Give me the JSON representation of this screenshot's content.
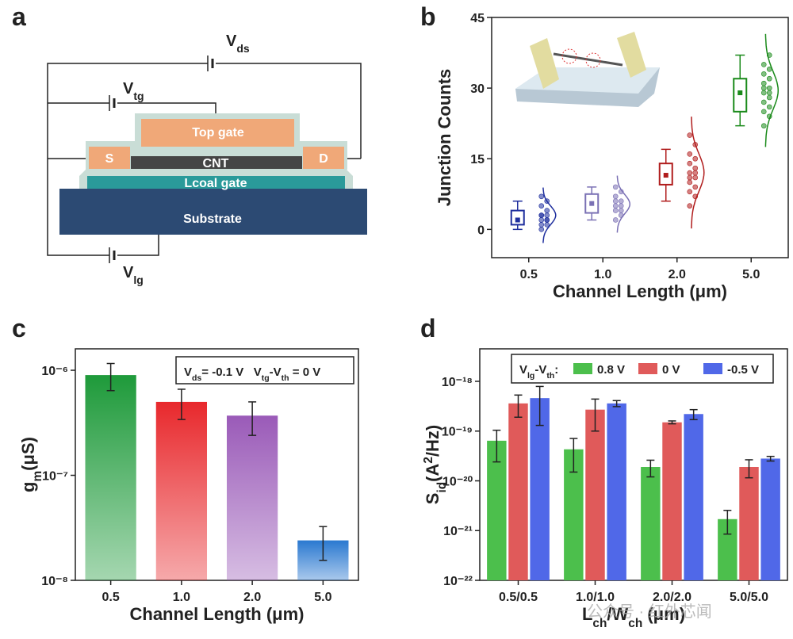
{
  "panel_labels": [
    "a",
    "b",
    "c",
    "d"
  ],
  "diagram": {
    "voltages": [
      [
        {
          "text": "V"
        },
        {
          "sub": "ds"
        }
      ],
      [
        {
          "text": "V"
        },
        {
          "sub": "tg"
        }
      ],
      [
        {
          "text": "V"
        },
        {
          "sub": "lg"
        }
      ]
    ],
    "layers": [
      "Top gate",
      "S",
      "CNT",
      "D",
      "Lcoal gate",
      "Substrate"
    ]
  },
  "chart_data": [
    {
      "type": "box",
      "y_label": "Junction Counts",
      "x_label": "Channel Length (μm)",
      "categories": [
        "0.5",
        "1.0",
        "2.0",
        "5.0"
      ],
      "ylim": [
        -6,
        45
      ],
      "yticks": [
        0,
        15,
        30,
        45
      ],
      "boxes": [
        {
          "color": "#1f2f9e",
          "min": 0,
          "q1": 1,
          "q3": 4,
          "max": 6,
          "mean": 2,
          "points": [
            0,
            1,
            1,
            2,
            2,
            2,
            3,
            3,
            3,
            4,
            5,
            6,
            7
          ]
        },
        {
          "color": "#7a70b4",
          "min": 2,
          "q1": 3.5,
          "q3": 7.5,
          "max": 9,
          "mean": 5.5,
          "points": [
            2,
            3,
            4,
            4,
            5,
            5,
            6,
            6,
            7,
            8,
            9
          ]
        },
        {
          "color": "#b01c1c",
          "min": 6,
          "q1": 9.5,
          "q3": 14,
          "max": 17,
          "mean": 11.5,
          "points": [
            5,
            7,
            8,
            9,
            10,
            11,
            11,
            12,
            12,
            13,
            14,
            15,
            16,
            18,
            20
          ]
        },
        {
          "color": "#1a8a1a",
          "min": 22,
          "q1": 25,
          "q3": 32,
          "max": 37,
          "mean": 29,
          "points": [
            22,
            24,
            25,
            26,
            27,
            28,
            29,
            29,
            30,
            30,
            31,
            32,
            33,
            34,
            35,
            37
          ]
        }
      ]
    },
    {
      "type": "bar",
      "log_scale": true,
      "y_label": [
        {
          "text": "g"
        },
        {
          "sub": "m"
        },
        {
          "text": "(μS)"
        }
      ],
      "x_label": "Channel Length (μm)",
      "annotation": [
        {
          "text": "V"
        },
        {
          "sub": "ds"
        },
        {
          "text": "= -0.1 V   V"
        },
        {
          "sub": "tg"
        },
        {
          "text": "-V"
        },
        {
          "sub": "th"
        },
        {
          "text": " = 0 V"
        }
      ],
      "categories": [
        "0.5",
        "1.0",
        "2.0",
        "5.0"
      ],
      "values": [
        9e-07,
        5e-07,
        3.7e-07,
        2.4e-08
      ],
      "errors": [
        2.6e-07,
        1.6e-07,
        1.3e-07,
        8.5e-09
      ],
      "colors": [
        "#1e9a3a",
        "#e8282c",
        "#9a5ab8",
        "#2a78d0"
      ],
      "ylim": [
        1e-08,
        1.6e-06
      ],
      "yticks": [
        {
          "value": 1e-08,
          "label": "10⁻⁸"
        },
        {
          "value": 1e-07,
          "label": "10⁻⁷"
        },
        {
          "value": 1e-06,
          "label": "10⁻⁶"
        }
      ]
    },
    {
      "type": "bar",
      "log_scale": true,
      "y_label": [
        {
          "text": "S"
        },
        {
          "sub": "id"
        },
        {
          "text": "(A"
        },
        {
          "sup": "2"
        },
        {
          "text": "/Hz)"
        }
      ],
      "x_label": [
        {
          "text": "L"
        },
        {
          "sub": "ch"
        },
        {
          "text": "/W"
        },
        {
          "sub": "ch"
        },
        {
          "text": " (μm)"
        }
      ],
      "legend_title": [
        {
          "text": "V"
        },
        {
          "sub": "lg"
        },
        {
          "text": "-V"
        },
        {
          "sub": "th"
        },
        {
          "text": ":"
        }
      ],
      "categories": [
        "0.5/0.5",
        "1.0/1.0",
        "2.0/2.0",
        "5.0/5.0"
      ],
      "series": [
        {
          "name": "0.8 V",
          "color": "#4cbf4c",
          "values": [
            6.4e-20,
            4.3e-20,
            1.9e-20,
            1.7e-21
          ],
          "errors": [
            4e-20,
            2.8e-20,
            7e-21,
            8.5e-22
          ]
        },
        {
          "name": "0 V",
          "color": "#e05a5a",
          "values": [
            3.6e-19,
            2.7e-19,
            1.5e-19,
            1.9e-20
          ],
          "errors": [
            1.7e-19,
            1.7e-19,
            1e-20,
            7.5e-21
          ]
        },
        {
          "name": "-0.5 V",
          "color": "#5068e8",
          "values": [
            4.6e-19,
            3.6e-19,
            2.2e-19,
            2.8e-20
          ],
          "errors": [
            3.3e-19,
            5e-20,
            5e-20,
            3e-21
          ]
        }
      ],
      "ylim": [
        1e-22,
        4.5e-18
      ],
      "yticks": [
        {
          "value": 1e-22,
          "label": "10⁻²²"
        },
        {
          "value": 1e-21,
          "label": "10⁻²¹"
        },
        {
          "value": 1e-20,
          "label": "10⁻²⁰"
        },
        {
          "value": 1e-19,
          "label": "10⁻¹⁹"
        },
        {
          "value": 1e-18,
          "label": "10⁻¹⁸"
        }
      ]
    }
  ],
  "watermark": "公众号 · 红外芯闻"
}
